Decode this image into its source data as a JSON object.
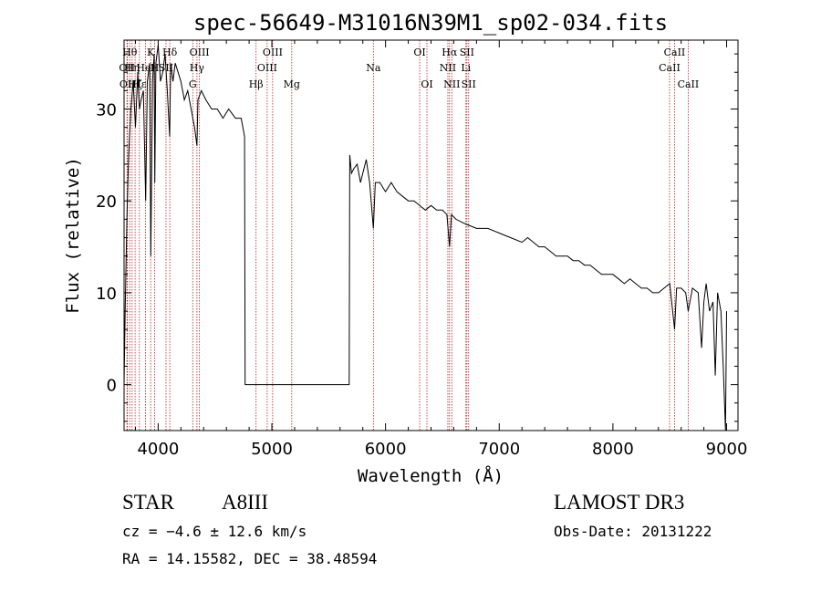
{
  "chart_data": {
    "type": "line",
    "title": "spec-56649-M31016N39M1_sp02-034.fits",
    "xlabel": "Wavelength (Å)",
    "ylabel": "Flux (relative)",
    "xlim": [
      3700,
      9100
    ],
    "ylim": [
      -5,
      37.5
    ],
    "xticks": [
      4000,
      5000,
      6000,
      7000,
      8000,
      9000
    ],
    "yticks": [
      0,
      10,
      20,
      30
    ],
    "series": [
      {
        "name": "flux",
        "x": [
          3700,
          3710,
          3725,
          3740,
          3760,
          3780,
          3800,
          3820,
          3835,
          3850,
          3870,
          3890,
          3905,
          3925,
          3935,
          3950,
          3965,
          3970,
          3980,
          4000,
          4020,
          4040,
          4060,
          4080,
          4101,
          4110,
          4130,
          4150,
          4175,
          4200,
          4230,
          4260,
          4290,
          4320,
          4341,
          4350,
          4380,
          4420,
          4470,
          4520,
          4570,
          4620,
          4680,
          4730,
          4760,
          4765,
          5680,
          5685,
          5700,
          5720,
          5750,
          5780,
          5800,
          5830,
          5860,
          5893,
          5910,
          5950,
          6000,
          6050,
          6100,
          6150,
          6200,
          6250,
          6300,
          6350,
          6400,
          6450,
          6500,
          6540,
          6563,
          6580,
          6620,
          6700,
          6800,
          6900,
          7000,
          7100,
          7200,
          7250,
          7300,
          7350,
          7400,
          7450,
          7500,
          7550,
          7600,
          7650,
          7700,
          7750,
          7800,
          7850,
          7900,
          7950,
          8000,
          8050,
          8100,
          8150,
          8200,
          8250,
          8300,
          8350,
          8400,
          8450,
          8500,
          8542,
          8560,
          8600,
          8640,
          8662,
          8700,
          8750,
          8780,
          8800,
          8820,
          8850,
          8880,
          8900,
          8920,
          8950,
          8970,
          8990,
          9000
        ],
        "values": [
          0,
          8,
          18,
          25,
          30,
          33,
          28,
          34,
          30,
          31,
          32,
          20,
          33,
          35,
          14,
          33,
          36,
          22,
          35,
          37,
          33,
          34,
          36,
          32,
          27,
          35,
          33,
          35,
          34,
          33,
          31,
          32,
          30,
          28,
          26,
          31,
          32,
          31,
          30,
          30,
          29,
          30,
          29,
          29,
          27,
          0,
          0,
          25,
          23,
          23.5,
          24,
          22,
          23,
          24.5,
          22,
          17,
          22,
          22,
          21,
          22,
          21,
          20.5,
          20,
          20,
          19.5,
          19,
          19.5,
          19,
          19,
          18.5,
          15,
          18.5,
          18,
          17.5,
          17,
          17,
          16.5,
          16,
          15.5,
          16,
          15.5,
          15,
          15,
          14.5,
          14,
          14,
          14,
          13.5,
          13.5,
          13,
          13,
          12.5,
          12,
          12,
          12,
          11.5,
          11,
          11.5,
          11,
          10.5,
          10.5,
          10,
          10,
          10.5,
          11,
          6,
          10.5,
          10.5,
          10,
          8,
          10.5,
          10,
          4,
          9,
          11,
          8,
          9,
          1,
          10,
          8,
          2,
          -5,
          8
        ]
      }
    ],
    "lines": [
      {
        "wl": 3726,
        "label": "OII",
        "row": 2
      },
      {
        "wl": 3730,
        "label": "OII",
        "row": 3
      },
      {
        "wl": 3750,
        "label": "Hθ",
        "row": 1
      },
      {
        "wl": 3771,
        "label": "Hη",
        "row": 2
      },
      {
        "wl": 3797,
        "label": "Hζ",
        "row": 3
      },
      {
        "wl": 3835,
        "label": "Hε",
        "row": 3
      },
      {
        "wl": 3889,
        "label": "HeI",
        "row": 2
      },
      {
        "wl": 3934,
        "label": "K",
        "row": 1
      },
      {
        "wl": 3969,
        "label": "H",
        "row": 2
      },
      {
        "wl": 4069,
        "label": "SII",
        "row": 2
      },
      {
        "wl": 4102,
        "label": "Hδ",
        "row": 1
      },
      {
        "wl": 4304,
        "label": "G",
        "row": 3
      },
      {
        "wl": 4341,
        "label": "Hγ",
        "row": 2
      },
      {
        "wl": 4363,
        "label": "OIII",
        "row": 1
      },
      {
        "wl": 4861,
        "label": "Hβ",
        "row": 3
      },
      {
        "wl": 4959,
        "label": "OIII",
        "row": 2
      },
      {
        "wl": 5007,
        "label": "OIII",
        "row": 1
      },
      {
        "wl": 5175,
        "label": "Mg",
        "row": 3
      },
      {
        "wl": 5893,
        "label": "Na",
        "row": 2
      },
      {
        "wl": 6300,
        "label": "OI",
        "row": 1
      },
      {
        "wl": 6364,
        "label": "OI",
        "row": 3
      },
      {
        "wl": 6548,
        "label": "NII",
        "row": 2
      },
      {
        "wl": 6563,
        "label": "Hα",
        "row": 1
      },
      {
        "wl": 6583,
        "label": "NII",
        "row": 3
      },
      {
        "wl": 6707,
        "label": "Li",
        "row": 2
      },
      {
        "wl": 6716,
        "label": "SII",
        "row": 1
      },
      {
        "wl": 6731,
        "label": "SII",
        "row": 3
      },
      {
        "wl": 8498,
        "label": "CaII",
        "row": 2
      },
      {
        "wl": 8542,
        "label": "CaII",
        "row": 1
      },
      {
        "wl": 8662,
        "label": "CaII",
        "row": 3
      }
    ]
  },
  "info": {
    "object_class": "STAR",
    "subclass": "A8III",
    "survey": "LAMOST DR3",
    "redshift": "cz = −4.6 ± 12.6 km/s",
    "obs_date": "Obs-Date: 20131222",
    "coords": "RA =  14.15582, DEC =  38.48594"
  },
  "colors": {
    "spectrum": "#000000",
    "line_markers": "#b22222",
    "axes": "#000000"
  }
}
